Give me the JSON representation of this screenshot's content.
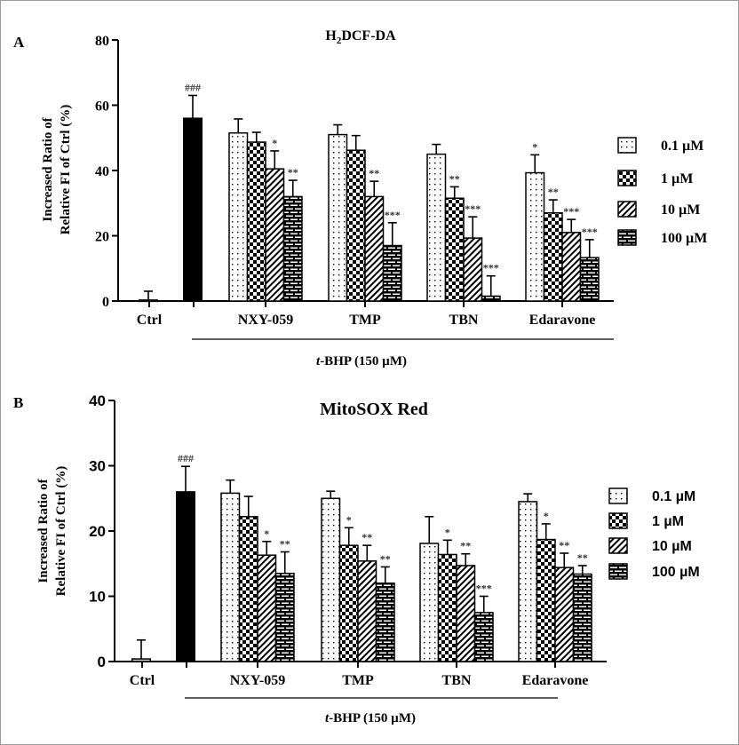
{
  "chart_data": [
    {
      "type": "bar",
      "panel_label": "A",
      "title": "H2DCF-DA",
      "title_main": "H",
      "title_sub": "2",
      "title_rest": "DCF-DA",
      "ylabel_lines": [
        "Increased Ratio of",
        "Relative FI of Ctrl (%)"
      ],
      "ylim": [
        0,
        80
      ],
      "yticks": [
        0,
        20,
        40,
        60,
        80
      ],
      "grid": false,
      "legend_position": "right",
      "group_label_prefix": "t",
      "group_label_rest": "-BHP (150 µM)",
      "controls": [
        {
          "category": "Ctrl",
          "value": 0.3,
          "error": 2.7,
          "color": "#c8c8c8",
          "annotation": ""
        },
        {
          "category": "",
          "value": 56,
          "error": 7,
          "color": "#000000",
          "annotation": "###"
        }
      ],
      "categories": [
        "NXY-059",
        "TMP",
        "TBN",
        "Edaravone"
      ],
      "series": [
        {
          "name": "0.1 µM",
          "pattern": "dots",
          "values": [
            51.5,
            51,
            45,
            39.3
          ],
          "errors": [
            4.3,
            3,
            3,
            5.5
          ],
          "annotations": [
            "",
            "",
            "",
            "*"
          ]
        },
        {
          "name": "1 µM",
          "pattern": "checker",
          "values": [
            48.7,
            46.2,
            31.5,
            27
          ],
          "errors": [
            3,
            4.5,
            3.5,
            4
          ],
          "annotations": [
            "",
            "",
            "**",
            "**"
          ]
        },
        {
          "name": "10 µM",
          "pattern": "hatch",
          "values": [
            40.5,
            32,
            19.3,
            21
          ],
          "errors": [
            5.5,
            4.7,
            6.5,
            4
          ],
          "annotations": [
            "*",
            "**",
            "***",
            "***"
          ]
        },
        {
          "name": "100 µM",
          "pattern": "brick",
          "values": [
            32,
            17,
            1.5,
            13.3
          ],
          "errors": [
            5,
            7,
            6.2,
            5.5
          ],
          "annotations": [
            "**",
            "***",
            "***",
            "***"
          ]
        }
      ]
    },
    {
      "type": "bar",
      "panel_label": "B",
      "title": "MitoSOX Red",
      "ylabel_lines": [
        "Increased Ratio of",
        "Relative FI of Ctrl (%)"
      ],
      "ylim": [
        0,
        40
      ],
      "yticks": [
        0,
        10,
        20,
        30,
        40
      ],
      "grid": false,
      "legend_position": "right",
      "group_label_prefix": "t",
      "group_label_rest": "-BHP (150 µM)",
      "controls": [
        {
          "category": "Ctrl",
          "value": 0.4,
          "error": 2.9,
          "color": "#c8c8c8",
          "annotation": ""
        },
        {
          "category": "",
          "value": 26,
          "error": 3.9,
          "color": "#000000",
          "annotation": "###"
        }
      ],
      "categories": [
        "NXY-059",
        "TMP",
        "TBN",
        "Edaravone"
      ],
      "series": [
        {
          "name": "0.1 µM",
          "pattern": "dots",
          "values": [
            25.8,
            25,
            18.1,
            24.5
          ],
          "errors": [
            2,
            1.1,
            4.1,
            1.2
          ],
          "annotations": [
            "",
            "",
            "",
            ""
          ]
        },
        {
          "name": "1 µM",
          "pattern": "checker",
          "values": [
            22.2,
            17.8,
            16.4,
            18.7
          ],
          "errors": [
            3.1,
            2.7,
            2.2,
            2.4
          ],
          "annotations": [
            "",
            "*",
            "*",
            "*"
          ]
        },
        {
          "name": "10 µM",
          "pattern": "hatch",
          "values": [
            16.3,
            15.4,
            14.7,
            14.4
          ],
          "errors": [
            2.1,
            2.4,
            1.8,
            2.2
          ],
          "annotations": [
            "*",
            "**",
            "**",
            "**"
          ]
        },
        {
          "name": "100 µM",
          "pattern": "brick",
          "values": [
            13.5,
            12,
            7.5,
            13.4
          ],
          "errors": [
            3.3,
            2.5,
            2.5,
            1.3
          ],
          "annotations": [
            "**",
            "**",
            "***",
            "**"
          ]
        }
      ]
    }
  ]
}
